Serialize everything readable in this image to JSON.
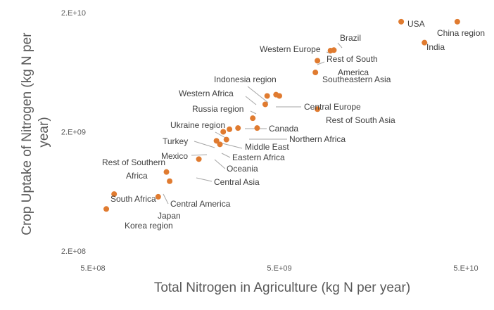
{
  "chart_data": {
    "type": "scatter",
    "title": "",
    "xlabel": "Total Nitrogen in Agriculture (kg N per year)",
    "ylabel": "Crop Uptake of Nitrogen (kg N per year)",
    "x_scale": "log",
    "y_scale": "log",
    "xlim": [
      500000000.0,
      50000000000.0
    ],
    "ylim": [
      200000000.0,
      20000000000.0
    ],
    "x_ticks": [
      "5.E+08",
      "5.E+09",
      "5.E+10"
    ],
    "y_ticks": [
      "2.E+10",
      "2.E+09",
      "2.E+08"
    ],
    "grid": false,
    "legend": "none",
    "marker_color": "#E07B30",
    "points": [
      {
        "label": "USA",
        "x": 22500000000.0,
        "y": 16800000000.0
      },
      {
        "label": "China region",
        "x": 45000000000.0,
        "y": 16800000000.0
      },
      {
        "label": "India",
        "x": 30000000000.0,
        "y": 11200000000.0
      },
      {
        "label": "Brazil",
        "x": 9800000000.0,
        "y": 9700000000.0
      },
      {
        "label": "Western Europe",
        "x": 9400000000.0,
        "y": 9600000000.0
      },
      {
        "label": "Rest of South America",
        "x": 8000000000.0,
        "y": 7900000000.0
      },
      {
        "label": "Southeastern Asia",
        "x": 7800000000.0,
        "y": 6300000000.0
      },
      {
        "label": "Indonesia region",
        "x": 4800000000.0,
        "y": 4100000000.0
      },
      {
        "label": "Central Europe",
        "x": 5000000000.0,
        "y": 4000000000.0
      },
      {
        "label": "Western Africa",
        "x": 4300000000.0,
        "y": 4000000000.0
      },
      {
        "label": "Russia region",
        "x": 4200000000.0,
        "y": 3400000000.0
      },
      {
        "label": "Rest of South Asia",
        "x": 8000000000.0,
        "y": 3100000000.0
      },
      {
        "label": "Canada",
        "x": 3600000000.0,
        "y": 2600000000.0
      },
      {
        "label": "Ukraine region",
        "x": 3000000000.0,
        "y": 2150000000.0
      },
      {
        "label": "Northern Africa",
        "x": 3800000000.0,
        "y": 2150000000.0
      },
      {
        "label": "Middle East",
        "x": 2700000000.0,
        "y": 2100000000.0
      },
      {
        "label": "Turkey",
        "x": 2500000000.0,
        "y": 2000000000.0
      },
      {
        "label": "Eastern Africa",
        "x": 2600000000.0,
        "y": 1720000000.0
      },
      {
        "label": "Mexico",
        "x": 2300000000.0,
        "y": 1680000000.0
      },
      {
        "label": "Oceania",
        "x": 2400000000.0,
        "y": 1570000000.0
      },
      {
        "label": "Central Asia",
        "x": 1850000000.0,
        "y": 1180000000.0
      },
      {
        "label": "Rest of Southern Africa",
        "x": 1240000000.0,
        "y": 920000000.0
      },
      {
        "label": "Central America",
        "x": 1290000000.0,
        "y": 770000000.0
      },
      {
        "label": "South Africa",
        "x": 650000000.0,
        "y": 600000000.0
      },
      {
        "label": "Japan",
        "x": 1120000000.0,
        "y": 570000000.0
      },
      {
        "label": "Korea region",
        "x": 590000000.0,
        "y": 450000000.0
      }
    ]
  }
}
